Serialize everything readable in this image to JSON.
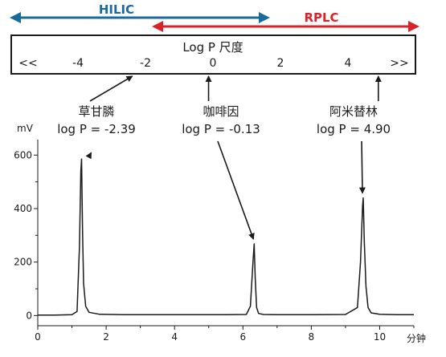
{
  "modes": {
    "hilic": {
      "label": "HILIC",
      "color": "#1a6a9c"
    },
    "rplc": {
      "label": "RPLC",
      "color": "#d8232a"
    }
  },
  "scale": {
    "title": "Log P 尺度",
    "left_marker": "<<",
    "right_marker": ">>",
    "ticks": [
      "-4",
      "-2",
      "0",
      "2",
      "4"
    ]
  },
  "compounds": [
    {
      "name": "草甘膦",
      "logp_label": "log P = -2.39",
      "logp": -2.39,
      "retention_time": 1.28,
      "peak_height": 585
    },
    {
      "name": "咖啡因",
      "logp_label": "log P = -0.13",
      "logp": -0.13,
      "retention_time": 6.33,
      "peak_height": 268
    },
    {
      "name": "阿米替林",
      "logp_label": "log P = 4.90",
      "logp": 4.9,
      "retention_time": 9.52,
      "peak_height": 440
    }
  ],
  "chart_data": {
    "type": "line",
    "title": "",
    "xlabel": "分钟",
    "ylabel": "mV",
    "xlim": [
      0,
      11
    ],
    "ylim": [
      -20,
      640
    ],
    "x_ticks": [
      0,
      2,
      4,
      6,
      8,
      10
    ],
    "y_ticks": [
      0,
      200,
      400,
      600
    ],
    "x_tick_labels": [
      "0",
      "2",
      "4",
      "6",
      "8",
      "10"
    ],
    "y_tick_labels": [
      "0",
      "200",
      "400",
      "600"
    ],
    "grid": false,
    "legend": "none",
    "series": [
      {
        "x": [
          0.0,
          0.5,
          1.0,
          1.15,
          1.22,
          1.26,
          1.28,
          1.31,
          1.34,
          1.4,
          1.5,
          1.8,
          2.5,
          3.5,
          4.5,
          5.5,
          6.1,
          6.22,
          6.29,
          6.33,
          6.36,
          6.4,
          6.46,
          6.6,
          7.0,
          8.0,
          9.0,
          9.35,
          9.44,
          9.5,
          9.52,
          9.55,
          9.6,
          9.66,
          9.75,
          10.0,
          10.5,
          11.0
        ],
        "y": [
          2,
          2,
          3,
          15,
          260,
          540,
          585,
          320,
          120,
          35,
          12,
          5,
          3,
          3,
          3,
          3,
          4,
          35,
          190,
          268,
          140,
          30,
          8,
          4,
          3,
          3,
          4,
          30,
          200,
          410,
          440,
          280,
          110,
          30,
          10,
          5,
          3,
          3
        ],
        "color": "#1a1a1a"
      }
    ]
  }
}
